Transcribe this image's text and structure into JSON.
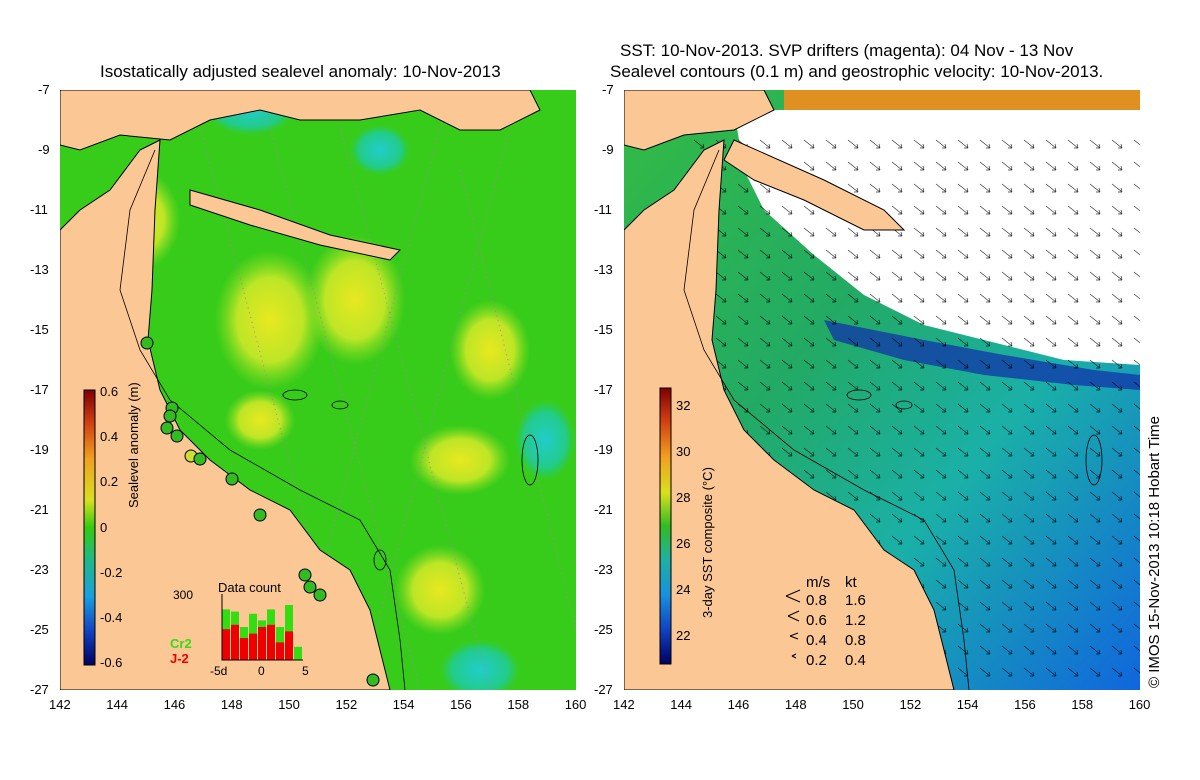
{
  "left": {
    "title": "Isostatically adjusted sealevel anomaly: 10-Nov-2013",
    "colorbar": {
      "label": "Sealevel anomaly (m)",
      "ticks": [
        "0.6",
        "0.4",
        "0.2",
        "0",
        "-0.2",
        "-0.4",
        "-0.6"
      ],
      "range": [
        -0.6,
        0.6
      ]
    },
    "datacount": {
      "title": "Data count",
      "y_tick": "300",
      "x_ticks": [
        "-5d",
        "0",
        "5"
      ],
      "series": [
        {
          "name": "Cr2",
          "color": "#33dd11",
          "values": [
            230,
            220,
            150,
            210,
            180,
            230,
            150,
            250,
            60
          ]
        },
        {
          "name": "J-2",
          "color": "#ee0000",
          "values": [
            140,
            160,
            100,
            120,
            150,
            160,
            80,
            130,
            0
          ]
        }
      ],
      "ylim": [
        0,
        300
      ]
    }
  },
  "right": {
    "title_line1": "SST: 10-Nov-2013. SVP drifters (magenta): 04 Nov - 13 Nov",
    "title_line2": "Sealevel contours (0.1 m) and geostrophic velocity: 10-Nov-2013.",
    "colorbar": {
      "label": "3-day SST composite (°C)",
      "ticks": [
        "32",
        "30",
        "28",
        "26",
        "24",
        "22"
      ],
      "range": [
        21,
        33
      ]
    },
    "legend": {
      "header_ms": "m/s",
      "header_kt": "kt",
      "rows": [
        {
          "ms": "0.8",
          "kt": "1.6"
        },
        {
          "ms": "0.6",
          "kt": "1.2"
        },
        {
          "ms": "0.4",
          "kt": "0.8"
        },
        {
          "ms": "0.2",
          "kt": "0.4"
        }
      ]
    },
    "side_text": "© IMOS 15-Nov-2013 10:18 Hobart Time"
  },
  "axes": {
    "lat_ticks": [
      "-7",
      "-9",
      "-11",
      "-13",
      "-15",
      "-17",
      "-19",
      "-21",
      "-23",
      "-25",
      "-27"
    ],
    "lon_ticks": [
      "142",
      "144",
      "146",
      "148",
      "150",
      "152",
      "154",
      "156",
      "158",
      "160"
    ],
    "lat_range": [
      -27,
      -7
    ],
    "lon_range": [
      142,
      160
    ]
  },
  "colors": {
    "land": "#fbc895",
    "ocean_base": "#33cc11",
    "ocean_high": "#c8e81c",
    "sst_warm": "#22aa55",
    "sst_cool": "#1177ee",
    "cloud": "#ffffff"
  }
}
